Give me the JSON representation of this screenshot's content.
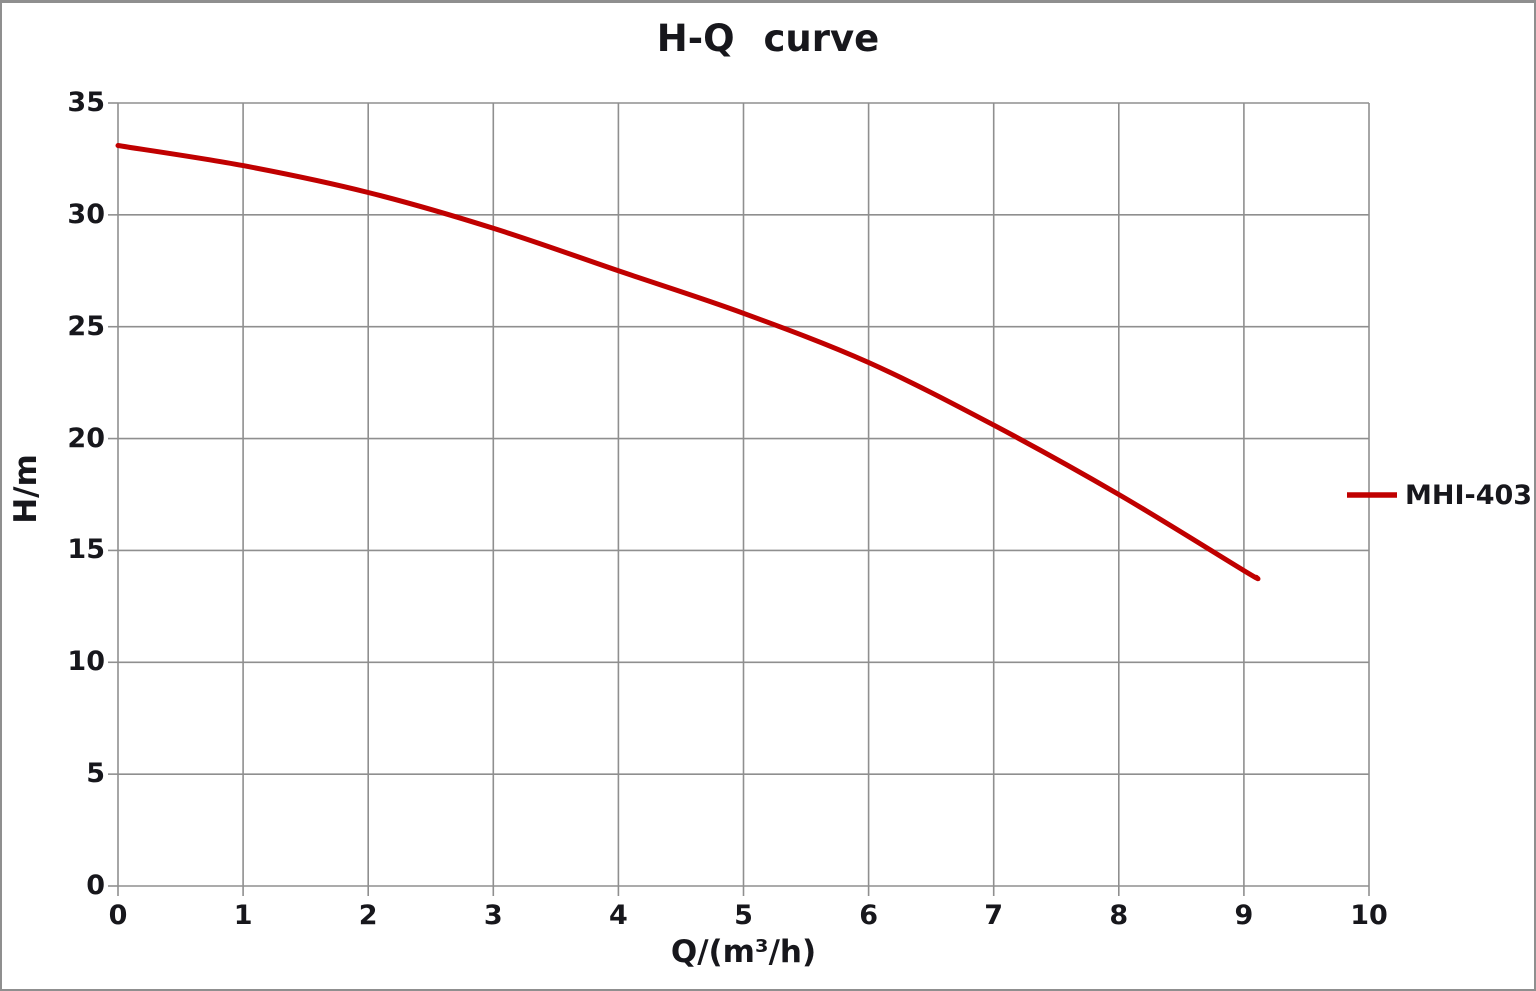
{
  "chart_data": {
    "type": "line",
    "title": "H-Q curve",
    "xlabel": "Q/(m³/h)",
    "ylabel": "H/m",
    "xlim": [
      0,
      10
    ],
    "ylim": [
      0,
      35
    ],
    "x_ticks": [
      0,
      1,
      2,
      3,
      4,
      5,
      6,
      7,
      8,
      9,
      10
    ],
    "y_ticks": [
      0,
      5,
      10,
      15,
      20,
      25,
      30,
      35
    ],
    "grid": true,
    "legend_position": "right-middle-outside",
    "series": [
      {
        "name": "MHI-403",
        "color": "#c00000",
        "x": [
          0,
          1,
          2,
          3,
          4,
          5,
          6,
          7,
          8,
          9,
          9.1
        ],
        "y": [
          33.1,
          32.2,
          31.0,
          29.4,
          27.5,
          25.6,
          23.4,
          20.6,
          17.5,
          14.1,
          13.8
        ]
      }
    ]
  },
  "colors": {
    "background": "#ffffff",
    "grid": "#8f8f8f",
    "axis": "#8f8f8f",
    "border": "#8f8f8f",
    "text": "#17171c",
    "series": "#c00000"
  }
}
